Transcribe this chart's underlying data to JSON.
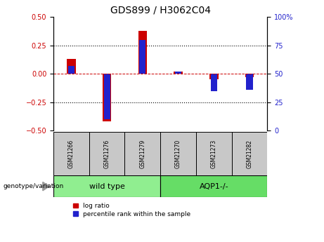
{
  "title": "GDS899 / H3062C04",
  "samples": [
    "GSM21266",
    "GSM21276",
    "GSM21279",
    "GSM21270",
    "GSM21273",
    "GSM21282"
  ],
  "log_ratio": [
    0.13,
    -0.42,
    0.38,
    0.02,
    -0.05,
    -0.03
  ],
  "percentile_rank": [
    57,
    10,
    80,
    52,
    35,
    36
  ],
  "left_ylim": [
    -0.5,
    0.5
  ],
  "right_ylim": [
    0,
    100
  ],
  "left_yticks": [
    -0.5,
    -0.25,
    0,
    0.25,
    0.5
  ],
  "right_yticks": [
    0,
    25,
    50,
    75,
    100
  ],
  "red_color": "#CC0000",
  "blue_color": "#2222CC",
  "hline_color": "#CC0000",
  "dot_color": "black",
  "sample_box_color": "#C8C8C8",
  "wt_color": "#90EE90",
  "aqp_color": "#66DD66",
  "genotype_label": "genotype/variation",
  "legend_log_ratio": "log ratio",
  "legend_percentile": "percentile rank within the sample",
  "wild_type_label": "wild type",
  "aqp_label": "AQP1-/-"
}
